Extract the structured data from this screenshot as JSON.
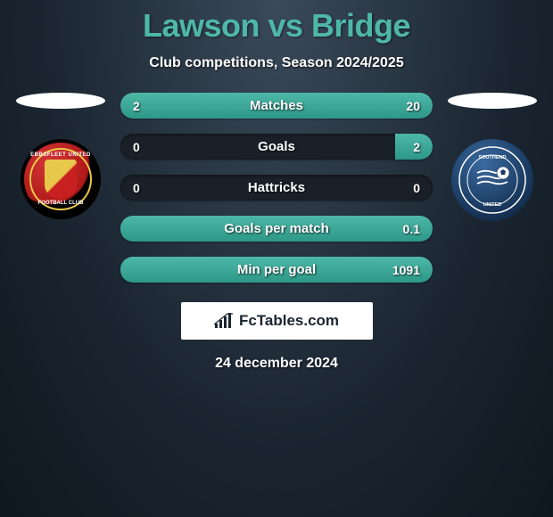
{
  "header": {
    "title": "Lawson vs Bridge",
    "subtitle": "Club competitions, Season 2024/2025",
    "title_color": "#4eb8a8"
  },
  "player_left": {
    "name": "Lawson",
    "club_badge": {
      "outer_color": "#000000",
      "ring_color": "#e8c84a",
      "center_bg": "#b01818",
      "top_text": "EBBSFLEET UNITED",
      "bottom_text": "FOOTBALL CLUB",
      "shield_colors": [
        "#e8c84a",
        "#c82020"
      ]
    }
  },
  "player_right": {
    "name": "Bridge",
    "club_badge": {
      "bg_color": "#1a3a60",
      "text": "SOUTHEND UNITED",
      "icon": "soccer-ball"
    }
  },
  "stats": {
    "bar_fill_color": "#4eb8a8",
    "bar_bg_color": "#1a2028",
    "rows": [
      {
        "label": "Matches",
        "left_val": "2",
        "right_val": "20",
        "left_pct": 18,
        "right_pct": 82
      },
      {
        "label": "Goals",
        "left_val": "0",
        "right_val": "2",
        "left_pct": 0,
        "right_pct": 12
      },
      {
        "label": "Hattricks",
        "left_val": "0",
        "right_val": "0",
        "left_pct": 0,
        "right_pct": 0
      },
      {
        "label": "Goals per match",
        "left_val": "",
        "right_val": "0.1",
        "left_pct": 0,
        "right_pct": 100
      },
      {
        "label": "Min per goal",
        "left_val": "",
        "right_val": "1091",
        "left_pct": 0,
        "right_pct": 100
      }
    ]
  },
  "brand": {
    "label": "FcTables.com"
  },
  "footer": {
    "date": "24 december 2024"
  }
}
